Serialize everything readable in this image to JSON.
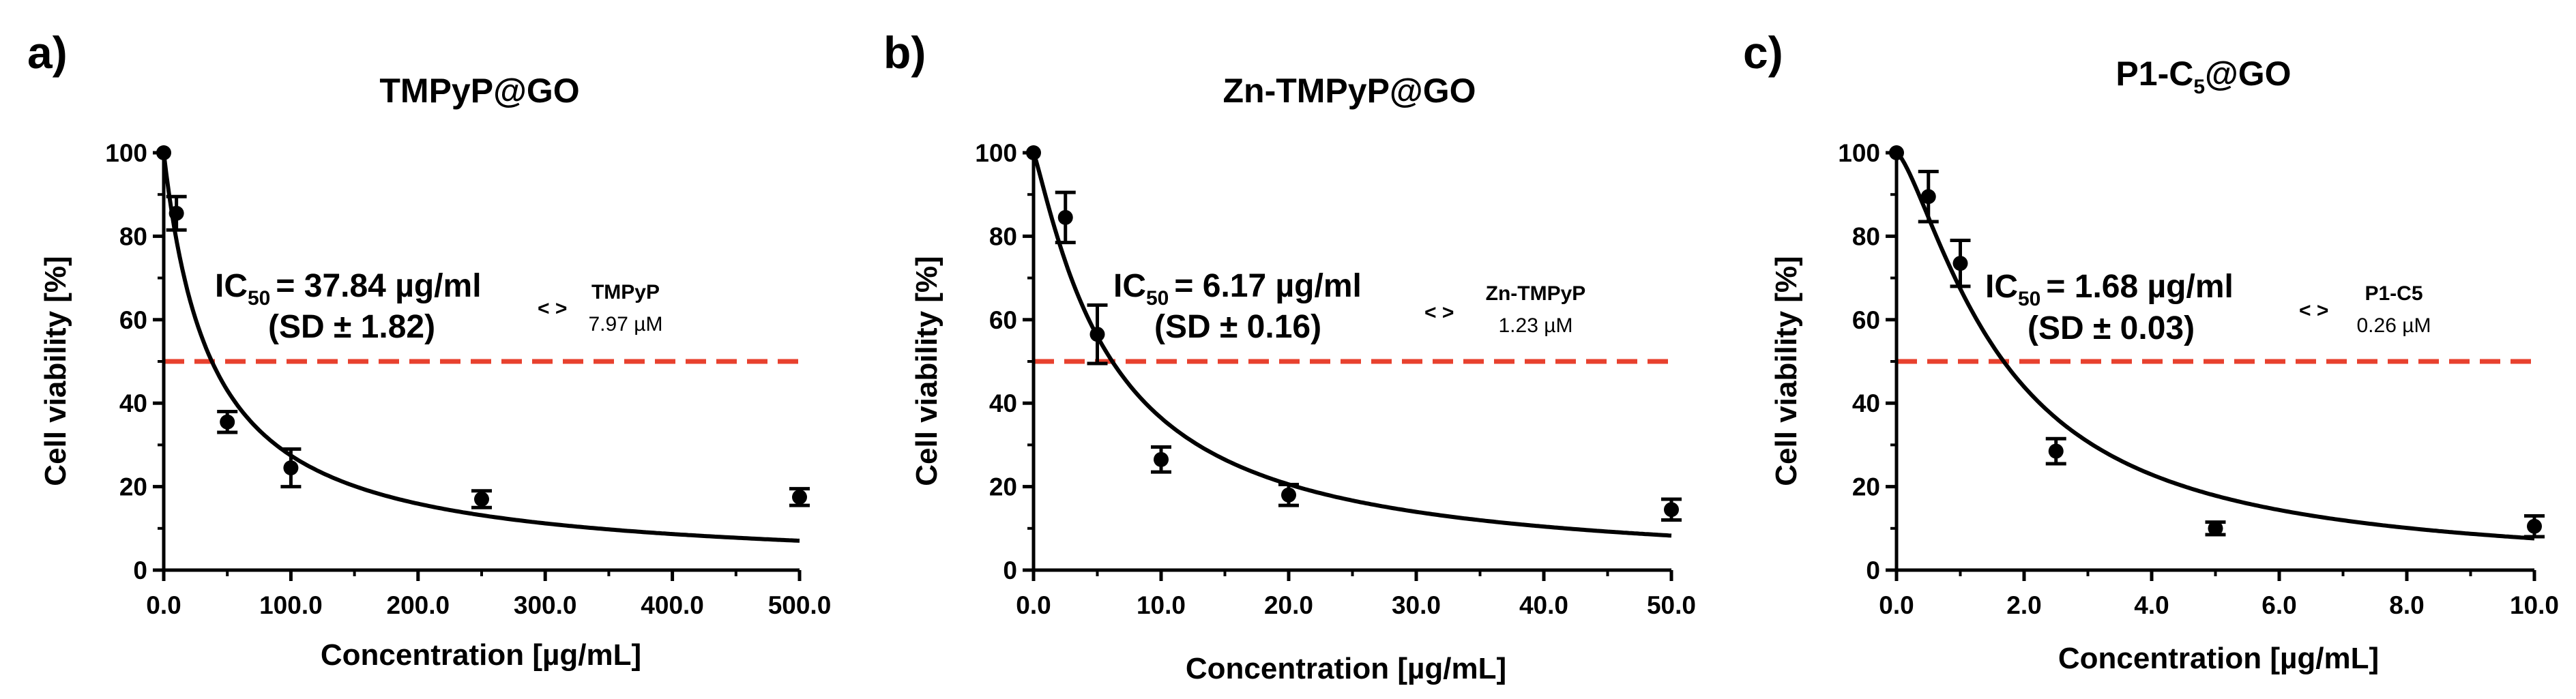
{
  "chart_data": [
    {
      "panel": "a)",
      "type": "scatter",
      "title": "TMPyP@GO",
      "title_parts": [
        "TMPyP@GO"
      ],
      "xlabel": "Concentration [µg/mL]",
      "ylabel": "Cell viability [%]",
      "xlim": [
        0,
        500
      ],
      "ylim": [
        0,
        100
      ],
      "xticks": [
        0,
        100,
        200,
        300,
        400,
        500
      ],
      "xtick_labels": [
        "0.0",
        "100.0",
        "200.0",
        "300.0",
        "400.0",
        "500.0"
      ],
      "yticks": [
        0,
        20,
        40,
        60,
        80,
        100
      ],
      "ytick_labels": [
        "0",
        "20",
        "40",
        "60",
        "80",
        "100"
      ],
      "points": [
        {
          "x": 0,
          "y": 100,
          "err": 0
        },
        {
          "x": 10,
          "y": 85.5,
          "err": 4
        },
        {
          "x": 50,
          "y": 35.5,
          "err": 2.5
        },
        {
          "x": 100,
          "y": 24.5,
          "err": 4.5
        },
        {
          "x": 250,
          "y": 17,
          "err": 2
        },
        {
          "x": 500,
          "y": 17.5,
          "err": 2
        }
      ],
      "fit": {
        "ic50": 37.84,
        "hill": 1.0
      },
      "threshold": 50,
      "ic50_main": "IC",
      "ic50_sub": "50",
      "ic50_value": "= 37.84 µg/ml",
      "ic50_sd": "(SD ± 1.82)",
      "arrow": "< >",
      "compound_name": "TMPyP",
      "compound_molar": "7.97 µM"
    },
    {
      "panel": "b)",
      "type": "scatter",
      "title": "Zn-TMPyP@GO",
      "title_parts": [
        "Zn-TMPyP@GO"
      ],
      "xlabel": "Concentration [µg/mL]",
      "ylabel": "Cell viability [%]",
      "xlim": [
        0,
        50
      ],
      "ylim": [
        0,
        100
      ],
      "xticks": [
        0,
        10,
        20,
        30,
        40,
        50
      ],
      "xtick_labels": [
        "0.0",
        "10.0",
        "20.0",
        "30.0",
        "40.0",
        "50.0"
      ],
      "yticks": [
        0,
        20,
        40,
        60,
        80,
        100
      ],
      "ytick_labels": [
        "0",
        "20",
        "40",
        "60",
        "80",
        "100"
      ],
      "points": [
        {
          "x": 0,
          "y": 100,
          "err": 0
        },
        {
          "x": 2.5,
          "y": 84.5,
          "err": 6
        },
        {
          "x": 5,
          "y": 56.5,
          "err": 7
        },
        {
          "x": 10,
          "y": 26.5,
          "err": 3
        },
        {
          "x": 20,
          "y": 18,
          "err": 2.5
        },
        {
          "x": 50,
          "y": 14.5,
          "err": 2.5
        }
      ],
      "fit": {
        "ic50": 6.17,
        "hill": 1.15
      },
      "threshold": 50,
      "ic50_main": "IC",
      "ic50_sub": "50",
      "ic50_value": "= 6.17 µg/ml",
      "ic50_sd": "(SD ± 0.16)",
      "arrow": "< >",
      "compound_name": "Zn-TMPyP",
      "compound_molar": "1.23 µM"
    },
    {
      "panel": "c)",
      "type": "scatter",
      "title": "P1-C5@GO",
      "title_parts": [
        "P1-C",
        "5",
        "@GO"
      ],
      "xlabel": "Concentration [µg/mL]",
      "ylabel": "Cell viability [%]",
      "xlim": [
        0,
        10
      ],
      "ylim": [
        0,
        100
      ],
      "xticks": [
        0,
        2,
        4,
        6,
        8,
        10
      ],
      "xtick_labels": [
        "0.0",
        "2.0",
        "4.0",
        "6.0",
        "8.0",
        "10.0"
      ],
      "yticks": [
        0,
        20,
        40,
        60,
        80,
        100
      ],
      "ytick_labels": [
        "0",
        "20",
        "40",
        "60",
        "80",
        "100"
      ],
      "points": [
        {
          "x": 0,
          "y": 100,
          "err": 0
        },
        {
          "x": 0.5,
          "y": 89.5,
          "err": 6
        },
        {
          "x": 1,
          "y": 73.5,
          "err": 5.5
        },
        {
          "x": 2.5,
          "y": 28.5,
          "err": 3
        },
        {
          "x": 5,
          "y": 10,
          "err": 1.5
        },
        {
          "x": 10,
          "y": 10.5,
          "err": 2.5
        }
      ],
      "fit": {
        "ic50": 1.68,
        "hill": 1.4
      },
      "threshold": 50,
      "ic50_main": "IC",
      "ic50_sub": "50",
      "ic50_value": "= 1.68 µg/ml",
      "ic50_sd": "(SD ± 0.03)",
      "arrow": "< >",
      "compound_name": "P1-C5",
      "compound_molar": "0.26 µM"
    }
  ],
  "colors": {
    "threshold_line": "#e8412e",
    "ink": "#000000"
  }
}
